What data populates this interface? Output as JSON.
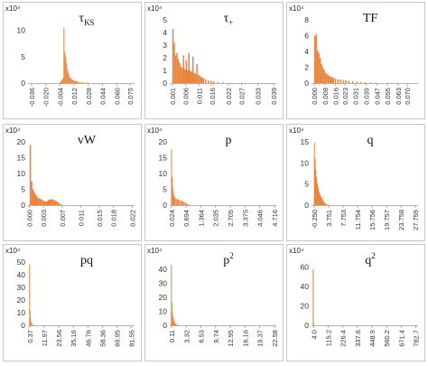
{
  "figure": {
    "bar_color": "#E9823A",
    "multiplier_label": "x10⁴"
  },
  "chart_data": [
    {
      "type": "bar",
      "title": "τKS",
      "title_main": "τ",
      "title_sub": "KS",
      "ylim": [
        0,
        12
      ],
      "yticks": [
        "0",
        "5",
        "10"
      ],
      "ytick_values": [
        0,
        5,
        10
      ],
      "xlim": [
        -0.04,
        0.08
      ],
      "xtick_labels": [
        "-0.036",
        "-0.020",
        "-0.004",
        "0.012",
        "0.028",
        "0.044",
        "0.060",
        "0.075"
      ],
      "xtick_values": [
        -0.036,
        -0.02,
        -0.004,
        0.012,
        0.028,
        0.044,
        0.06,
        0.075
      ],
      "bins": [
        {
          "x": -0.0035,
          "y": 0.2
        },
        {
          "x": -0.0025,
          "y": 0.4
        },
        {
          "x": -0.0015,
          "y": 0.7
        },
        {
          "x": -0.0005,
          "y": 1.0
        },
        {
          "x": 0.0005,
          "y": 10.5
        },
        {
          "x": 0.0015,
          "y": 5.9
        },
        {
          "x": 0.0025,
          "y": 5.1
        },
        {
          "x": 0.0035,
          "y": 3.8
        },
        {
          "x": 0.0045,
          "y": 2.5
        },
        {
          "x": 0.0055,
          "y": 1.9
        },
        {
          "x": 0.0065,
          "y": 1.4
        },
        {
          "x": 0.0075,
          "y": 1.1
        },
        {
          "x": 0.0085,
          "y": 0.9
        },
        {
          "x": 0.0095,
          "y": 0.7
        },
        {
          "x": 0.0105,
          "y": 0.6
        },
        {
          "x": 0.0115,
          "y": 0.5
        },
        {
          "x": 0.0125,
          "y": 0.45
        },
        {
          "x": 0.0135,
          "y": 0.4
        },
        {
          "x": 0.0145,
          "y": 0.35
        },
        {
          "x": 0.0155,
          "y": 0.3
        },
        {
          "x": 0.017,
          "y": 0.25
        },
        {
          "x": 0.019,
          "y": 0.2
        },
        {
          "x": 0.021,
          "y": 0.15
        },
        {
          "x": 0.023,
          "y": 0.12
        },
        {
          "x": 0.025,
          "y": 0.1
        },
        {
          "x": 0.027,
          "y": 0.08
        },
        {
          "x": 0.03,
          "y": 0.06
        },
        {
          "x": 0.034,
          "y": 0.04
        },
        {
          "x": 0.038,
          "y": 0.03
        },
        {
          "x": 0.042,
          "y": 0.02
        }
      ]
    },
    {
      "type": "bar",
      "title": "τ+",
      "title_main": "τ",
      "title_sub": "+",
      "ylim": [
        0,
        5
      ],
      "yticks": [
        "0",
        "1",
        "2",
        "3",
        "4",
        "5"
      ],
      "ytick_values": [
        0,
        1,
        2,
        3,
        4,
        5
      ],
      "xlim": [
        0.0,
        0.04
      ],
      "xtick_labels": [
        "0.001",
        "0.006",
        "0.011",
        "0.016",
        "0.022",
        "0.027",
        "0.033",
        "0.039"
      ],
      "xtick_values": [
        0.001,
        0.006,
        0.011,
        0.016,
        0.022,
        0.027,
        0.033,
        0.039
      ],
      "bins": [
        {
          "x": 0.0012,
          "y": 4.3
        },
        {
          "x": 0.0017,
          "y": 3.2
        },
        {
          "x": 0.0022,
          "y": 2.2
        },
        {
          "x": 0.0027,
          "y": 2.4
        },
        {
          "x": 0.0032,
          "y": 1.9
        },
        {
          "x": 0.0037,
          "y": 1.6
        },
        {
          "x": 0.0042,
          "y": 1.3
        },
        {
          "x": 0.0047,
          "y": 1.2
        },
        {
          "x": 0.0052,
          "y": 2.2
        },
        {
          "x": 0.0057,
          "y": 1.1
        },
        {
          "x": 0.0062,
          "y": 1.8
        },
        {
          "x": 0.0067,
          "y": 1.0
        },
        {
          "x": 0.0072,
          "y": 2.4
        },
        {
          "x": 0.0077,
          "y": 1.0
        },
        {
          "x": 0.0082,
          "y": 0.9
        },
        {
          "x": 0.0087,
          "y": 2.1
        },
        {
          "x": 0.0092,
          "y": 0.8
        },
        {
          "x": 0.0097,
          "y": 0.75
        },
        {
          "x": 0.0102,
          "y": 1.5
        },
        {
          "x": 0.0107,
          "y": 0.65
        },
        {
          "x": 0.0112,
          "y": 0.6
        },
        {
          "x": 0.0117,
          "y": 0.5
        },
        {
          "x": 0.0122,
          "y": 0.45
        },
        {
          "x": 0.0127,
          "y": 0.4
        },
        {
          "x": 0.0135,
          "y": 0.3
        },
        {
          "x": 0.0145,
          "y": 0.22
        },
        {
          "x": 0.0155,
          "y": 0.18
        },
        {
          "x": 0.0165,
          "y": 0.14
        },
        {
          "x": 0.018,
          "y": 0.1
        },
        {
          "x": 0.02,
          "y": 0.07
        },
        {
          "x": 0.023,
          "y": 0.04
        },
        {
          "x": 0.027,
          "y": 0.02
        }
      ]
    },
    {
      "type": "bar",
      "title": "TF",
      "title_main": "TF",
      "title_sub": "",
      "ylim": [
        0,
        8
      ],
      "yticks": [
        "0",
        "2",
        "4",
        "6",
        "8"
      ],
      "ytick_values": [
        0,
        2,
        4,
        6,
        8
      ],
      "xlim": [
        -0.002,
        0.078
      ],
      "xtick_labels": [
        "0.000",
        "0.008",
        "0.016",
        "0.023",
        "0.031",
        "0.039",
        "0.047",
        "0.055",
        "0.063",
        "0.070"
      ],
      "xtick_values": [
        0.0,
        0.008,
        0.016,
        0.023,
        0.031,
        0.039,
        0.047,
        0.055,
        0.063,
        0.07
      ],
      "bins": [
        {
          "x": 0.0005,
          "y": 6.0
        },
        {
          "x": 0.0015,
          "y": 6.2
        },
        {
          "x": 0.0025,
          "y": 4.1
        },
        {
          "x": 0.0035,
          "y": 3.8
        },
        {
          "x": 0.0045,
          "y": 3.2
        },
        {
          "x": 0.0055,
          "y": 2.4
        },
        {
          "x": 0.0065,
          "y": 2.0
        },
        {
          "x": 0.0075,
          "y": 1.7
        },
        {
          "x": 0.0085,
          "y": 1.3
        },
        {
          "x": 0.0095,
          "y": 1.2
        },
        {
          "x": 0.0105,
          "y": 1.0
        },
        {
          "x": 0.0115,
          "y": 0.9
        },
        {
          "x": 0.0125,
          "y": 0.8
        },
        {
          "x": 0.0135,
          "y": 0.75
        },
        {
          "x": 0.0145,
          "y": 0.7
        },
        {
          "x": 0.016,
          "y": 0.6
        },
        {
          "x": 0.018,
          "y": 0.5
        },
        {
          "x": 0.02,
          "y": 0.45
        },
        {
          "x": 0.022,
          "y": 0.4
        },
        {
          "x": 0.024,
          "y": 0.35
        },
        {
          "x": 0.026,
          "y": 0.3
        },
        {
          "x": 0.029,
          "y": 0.25
        },
        {
          "x": 0.032,
          "y": 0.2
        },
        {
          "x": 0.035,
          "y": 0.15
        },
        {
          "x": 0.038,
          "y": 0.12
        },
        {
          "x": 0.042,
          "y": 0.08
        },
        {
          "x": 0.046,
          "y": 0.05
        }
      ]
    },
    {
      "type": "bar",
      "title": "vW",
      "title_main": "vW",
      "title_sub": "",
      "ylim": [
        0,
        20
      ],
      "yticks": [
        "0",
        "5",
        "10",
        "15",
        "20"
      ],
      "ytick_values": [
        0,
        5,
        10,
        15,
        20
      ],
      "xlim": [
        -0.0003,
        0.0225
      ],
      "xtick_labels": [
        "0.000",
        "0.003",
        "0.007",
        "0.011",
        "0.015",
        "0.018",
        "0.022"
      ],
      "xtick_values": [
        0.0,
        0.003,
        0.007,
        0.011,
        0.015,
        0.018,
        0.022
      ],
      "bins": [
        {
          "x": 0.0002,
          "y": 19.0
        },
        {
          "x": 0.0005,
          "y": 7.5
        },
        {
          "x": 0.0008,
          "y": 5.0
        },
        {
          "x": 0.0011,
          "y": 4.0
        },
        {
          "x": 0.0014,
          "y": 3.2
        },
        {
          "x": 0.0017,
          "y": 2.6
        },
        {
          "x": 0.002,
          "y": 2.2
        },
        {
          "x": 0.0023,
          "y": 2.0
        },
        {
          "x": 0.0026,
          "y": 1.8
        },
        {
          "x": 0.0029,
          "y": 1.5
        },
        {
          "x": 0.0032,
          "y": 1.3
        },
        {
          "x": 0.0035,
          "y": 1.1
        },
        {
          "x": 0.0038,
          "y": 1.3
        },
        {
          "x": 0.0041,
          "y": 1.6
        },
        {
          "x": 0.0044,
          "y": 1.8
        },
        {
          "x": 0.0047,
          "y": 1.9
        },
        {
          "x": 0.005,
          "y": 1.8
        },
        {
          "x": 0.0053,
          "y": 1.6
        },
        {
          "x": 0.0056,
          "y": 1.4
        },
        {
          "x": 0.0059,
          "y": 1.2
        },
        {
          "x": 0.0062,
          "y": 0.8
        },
        {
          "x": 0.0065,
          "y": 0.4
        },
        {
          "x": 0.0068,
          "y": 0.15
        }
      ]
    },
    {
      "type": "bar",
      "title": "p",
      "title_main": "p",
      "title_sub": "",
      "ylim": [
        0,
        20
      ],
      "yticks": [
        "0",
        "5",
        "10",
        "15",
        "20"
      ],
      "ytick_values": [
        0,
        5,
        10,
        15,
        20
      ],
      "xlim": [
        -0.05,
        4.8
      ],
      "xtick_labels": [
        "0.024",
        "0.694",
        "1.364",
        "2.035",
        "2.705",
        "3.375",
        "4.046",
        "4.716"
      ],
      "xtick_values": [
        0.024,
        0.694,
        1.364,
        2.035,
        2.705,
        3.375,
        4.046,
        4.716
      ],
      "bins": [
        {
          "x": 0.03,
          "y": 17.5
        },
        {
          "x": 0.06,
          "y": 9.0
        },
        {
          "x": 0.09,
          "y": 5.5
        },
        {
          "x": 0.12,
          "y": 3.8
        },
        {
          "x": 0.16,
          "y": 2.8
        },
        {
          "x": 0.2,
          "y": 2.3
        },
        {
          "x": 0.25,
          "y": 2.0
        },
        {
          "x": 0.3,
          "y": 1.8
        },
        {
          "x": 0.35,
          "y": 1.7
        },
        {
          "x": 0.4,
          "y": 1.6
        },
        {
          "x": 0.45,
          "y": 1.5
        },
        {
          "x": 0.5,
          "y": 1.3
        },
        {
          "x": 0.55,
          "y": 1.2
        },
        {
          "x": 0.6,
          "y": 1.0
        },
        {
          "x": 0.65,
          "y": 0.8
        },
        {
          "x": 0.7,
          "y": 0.6
        },
        {
          "x": 0.75,
          "y": 0.4
        },
        {
          "x": 0.8,
          "y": 0.25
        },
        {
          "x": 0.85,
          "y": 0.12
        }
      ]
    },
    {
      "type": "bar",
      "title": "q",
      "title_main": "q",
      "title_sub": "",
      "ylim": [
        0,
        15
      ],
      "yticks": [
        "0",
        "5",
        "10",
        "15"
      ],
      "ytick_values": [
        0,
        5,
        10,
        15
      ],
      "xlim": [
        -1.0,
        28.5
      ],
      "xtick_labels": [
        "-0.250",
        "3.751",
        "7.753",
        "11.754",
        "15.756",
        "19.757",
        "23.758",
        "27.759"
      ],
      "xtick_values": [
        -0.25,
        3.751,
        7.753,
        11.754,
        15.756,
        19.757,
        23.758,
        27.759
      ],
      "bins": [
        {
          "x": -0.2,
          "y": 14.8
        },
        {
          "x": 0.0,
          "y": 11.0
        },
        {
          "x": 0.2,
          "y": 8.5
        },
        {
          "x": 0.4,
          "y": 6.5
        },
        {
          "x": 0.6,
          "y": 5.2
        },
        {
          "x": 0.8,
          "y": 4.3
        },
        {
          "x": 1.0,
          "y": 3.5
        },
        {
          "x": 1.2,
          "y": 3.0
        },
        {
          "x": 1.4,
          "y": 2.5
        },
        {
          "x": 1.6,
          "y": 2.1
        },
        {
          "x": 1.8,
          "y": 1.7
        },
        {
          "x": 2.0,
          "y": 1.4
        },
        {
          "x": 2.2,
          "y": 1.1
        },
        {
          "x": 2.4,
          "y": 0.8
        },
        {
          "x": 2.6,
          "y": 0.6
        },
        {
          "x": 2.9,
          "y": 0.4
        },
        {
          "x": 3.2,
          "y": 0.25
        },
        {
          "x": 3.6,
          "y": 0.12
        }
      ]
    },
    {
      "type": "bar",
      "title": "pq",
      "title_main": "pq",
      "title_sub": "",
      "ylim": [
        0,
        50
      ],
      "yticks": [
        "0",
        "10",
        "20",
        "30",
        "40",
        "50"
      ],
      "ytick_values": [
        0,
        10,
        20,
        30,
        40,
        50
      ],
      "xlim": [
        -1.0,
        84.0
      ],
      "xtick_labels": [
        "0.37",
        "11.97",
        "23.56",
        "35.16",
        "46.76",
        "58.36",
        "69.95",
        "81.55"
      ],
      "xtick_values": [
        0.37,
        11.97,
        23.56,
        35.16,
        46.76,
        58.36,
        69.95,
        81.55
      ],
      "bins": [
        {
          "x": 0.3,
          "y": 48.5
        },
        {
          "x": 0.6,
          "y": 12.0
        },
        {
          "x": 0.9,
          "y": 6.0
        },
        {
          "x": 1.2,
          "y": 3.5
        },
        {
          "x": 1.5,
          "y": 2.0
        },
        {
          "x": 1.9,
          "y": 1.2
        },
        {
          "x": 2.4,
          "y": 0.7
        },
        {
          "x": 3.0,
          "y": 0.4
        }
      ]
    },
    {
      "type": "bar",
      "title": "p²",
      "title_main": "p",
      "title_sup": "2",
      "ylim": [
        0,
        45
      ],
      "yticks": [
        "0",
        "10",
        "20",
        "30",
        "40"
      ],
      "ytick_values": [
        0,
        10,
        20,
        30,
        40
      ],
      "xlim": [
        -0.3,
        23.0
      ],
      "xtick_labels": [
        "0.11",
        "3.32",
        "6.53",
        "9.74",
        "12.95",
        "16.16",
        "19.37",
        "22.58"
      ],
      "xtick_values": [
        0.11,
        3.32,
        6.53,
        9.74,
        12.95,
        16.16,
        19.37,
        22.58
      ],
      "bins": [
        {
          "x": 0.05,
          "y": 43.0
        },
        {
          "x": 0.15,
          "y": 16.0
        },
        {
          "x": 0.25,
          "y": 9.0
        },
        {
          "x": 0.35,
          "y": 6.5
        },
        {
          "x": 0.45,
          "y": 5.0
        },
        {
          "x": 0.55,
          "y": 3.5
        },
        {
          "x": 0.7,
          "y": 2.4
        },
        {
          "x": 0.9,
          "y": 1.5
        },
        {
          "x": 1.1,
          "y": 0.9
        },
        {
          "x": 1.35,
          "y": 0.5
        },
        {
          "x": 1.7,
          "y": 0.25
        }
      ]
    },
    {
      "type": "bar",
      "title": "q²",
      "title_main": "q",
      "title_sup": "2",
      "ylim": [
        0,
        65
      ],
      "yticks": [
        "0",
        "20",
        "40",
        "60"
      ],
      "ytick_values": [
        0,
        20,
        40,
        60
      ],
      "xlim": [
        -12.0,
        800.0
      ],
      "xtick_labels": [
        "4.0",
        "115.2",
        "226.4",
        "337.6",
        "448.9",
        "560.2",
        "671.4",
        "782.7"
      ],
      "xtick_values": [
        4.0,
        115.2,
        226.4,
        337.6,
        448.9,
        560.2,
        671.4,
        782.7
      ],
      "bins": [
        {
          "x": 1.0,
          "y": 58.0
        },
        {
          "x": 3.0,
          "y": 3.0
        },
        {
          "x": 5.0,
          "y": 0.8
        }
      ]
    }
  ]
}
